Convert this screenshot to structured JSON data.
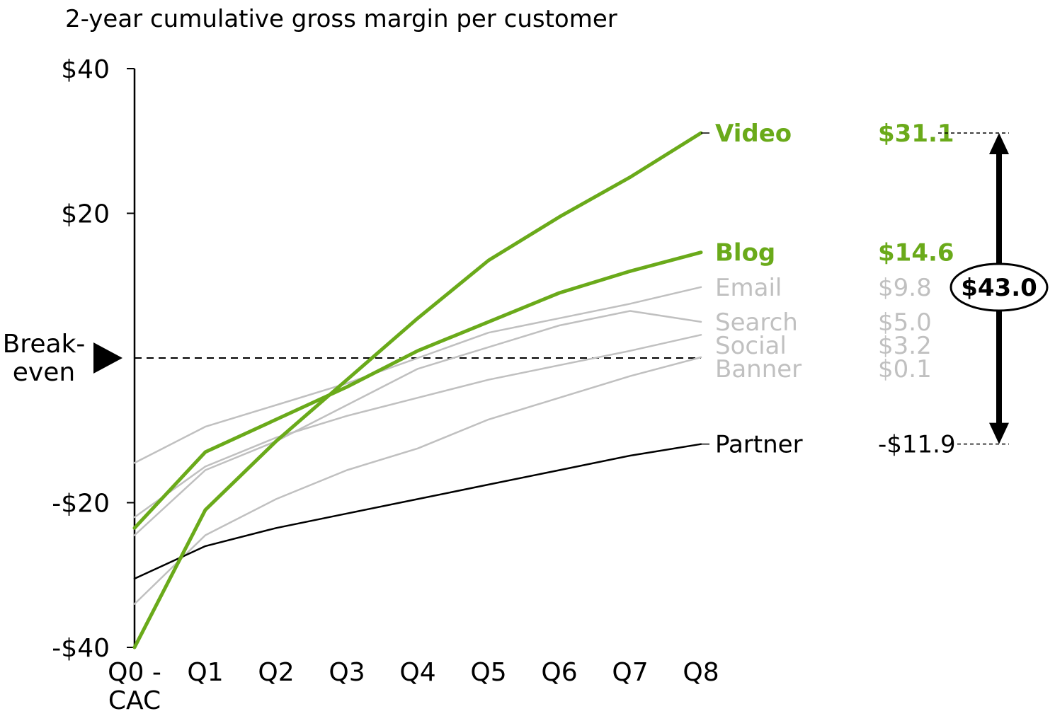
{
  "chart_data": {
    "type": "line",
    "title": "2-year cumulative gross margin per customer",
    "categories": [
      "Q0 -\nCAC",
      "Q1",
      "Q2",
      "Q3",
      "Q4",
      "Q5",
      "Q6",
      "Q7",
      "Q8"
    ],
    "y_ticks": [
      "$40",
      "$20",
      "-$20",
      "-$40"
    ],
    "y_tick_values": [
      40,
      20,
      -20,
      -40
    ],
    "ylim": [
      -40,
      40
    ],
    "breakeven_label": "Break-\neven",
    "breakeven_value": 0,
    "series": [
      {
        "name": "Email",
        "end_label": "$9.8",
        "color": "#c0c0c0",
        "highlight": false,
        "values": [
          -14.5,
          -9.5,
          -6.5,
          -3.5,
          0,
          3.5,
          5.5,
          7.5,
          9.8
        ]
      },
      {
        "name": "Search",
        "end_label": "$5.0",
        "color": "#c0c0c0",
        "highlight": false,
        "values": [
          -24.5,
          -15.5,
          -11.5,
          -6.5,
          -1.5,
          1.5,
          4.5,
          6.5,
          5.0
        ]
      },
      {
        "name": "Social",
        "end_label": "$3.2",
        "color": "#c0c0c0",
        "highlight": false,
        "values": [
          -22.0,
          -15.0,
          -11.0,
          -8.0,
          -5.5,
          -3.0,
          -1.0,
          1.0,
          3.2
        ]
      },
      {
        "name": "Banner",
        "end_label": "$0.1",
        "color": "#c0c0c0",
        "highlight": false,
        "values": [
          -34.0,
          -24.5,
          -19.5,
          -15.5,
          -12.5,
          -8.5,
          -5.5,
          -2.5,
          0.1
        ]
      },
      {
        "name": "Partner",
        "end_label": "-$11.9",
        "color": "#000000",
        "highlight": false,
        "values": [
          -30.5,
          -26.0,
          -23.5,
          -21.5,
          -19.5,
          -17.5,
          -15.5,
          -13.5,
          -11.9
        ]
      },
      {
        "name": "Blog",
        "end_label": "$14.6",
        "color": "#6aaa1a",
        "highlight": true,
        "values": [
          -23.5,
          -13.0,
          -8.5,
          -4.0,
          1.0,
          5.0,
          9.0,
          12.0,
          14.6
        ]
      },
      {
        "name": "Video",
        "end_label": "$31.1",
        "color": "#6aaa1a",
        "highlight": true,
        "values": [
          -40.0,
          -21.0,
          -11.5,
          -3.0,
          5.5,
          13.5,
          19.5,
          25.0,
          31.1
        ]
      }
    ],
    "spread_label": "$43.0",
    "spread_range": [
      -11.9,
      31.1
    ]
  }
}
